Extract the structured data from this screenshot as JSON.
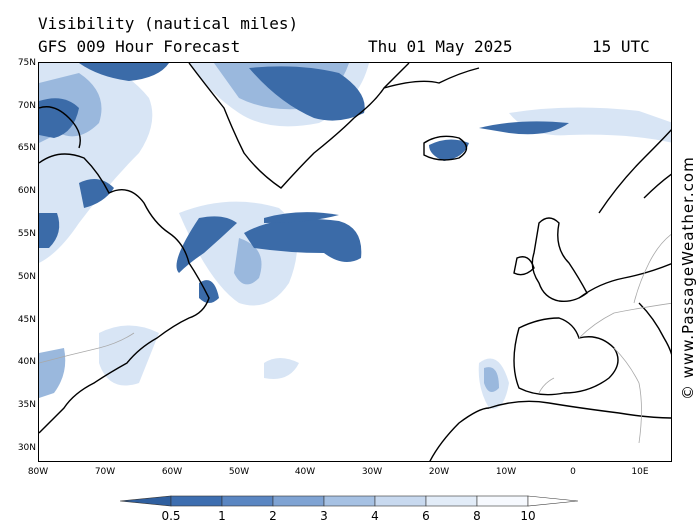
{
  "header": {
    "title": "Visibility (nautical miles)",
    "subtitle": "GFS 009 Hour Forecast",
    "date": "Thu 01 May 2025",
    "hour": "15 UTC"
  },
  "credit": "© www.PassageWeather.com",
  "axes": {
    "lat_labels": [
      "75N",
      "70N",
      "65N",
      "60N",
      "55N",
      "50N",
      "45N",
      "40N",
      "35N",
      "30N"
    ],
    "lon_labels": [
      "80W",
      "70W",
      "60W",
      "50W",
      "40W",
      "30W",
      "20W",
      "10W",
      "0",
      "10E"
    ]
  },
  "colorbar": {
    "labels": [
      "0.5",
      "1",
      "2",
      "3",
      "4",
      "6",
      "8",
      "10"
    ],
    "colors": [
      "#2f5f9f",
      "#3d6eb0",
      "#5a86c2",
      "#7fa3d3",
      "#a6c1e3",
      "#c8d9ef",
      "#e2ecf8",
      "#f6f9fe"
    ]
  },
  "colors": {
    "low_visibility": "#3b6ba8",
    "moderate_visibility": "#9ab8dd",
    "light_haze": "#d8e5f5",
    "coastline": "#000000",
    "border": "#a8a8a8"
  }
}
